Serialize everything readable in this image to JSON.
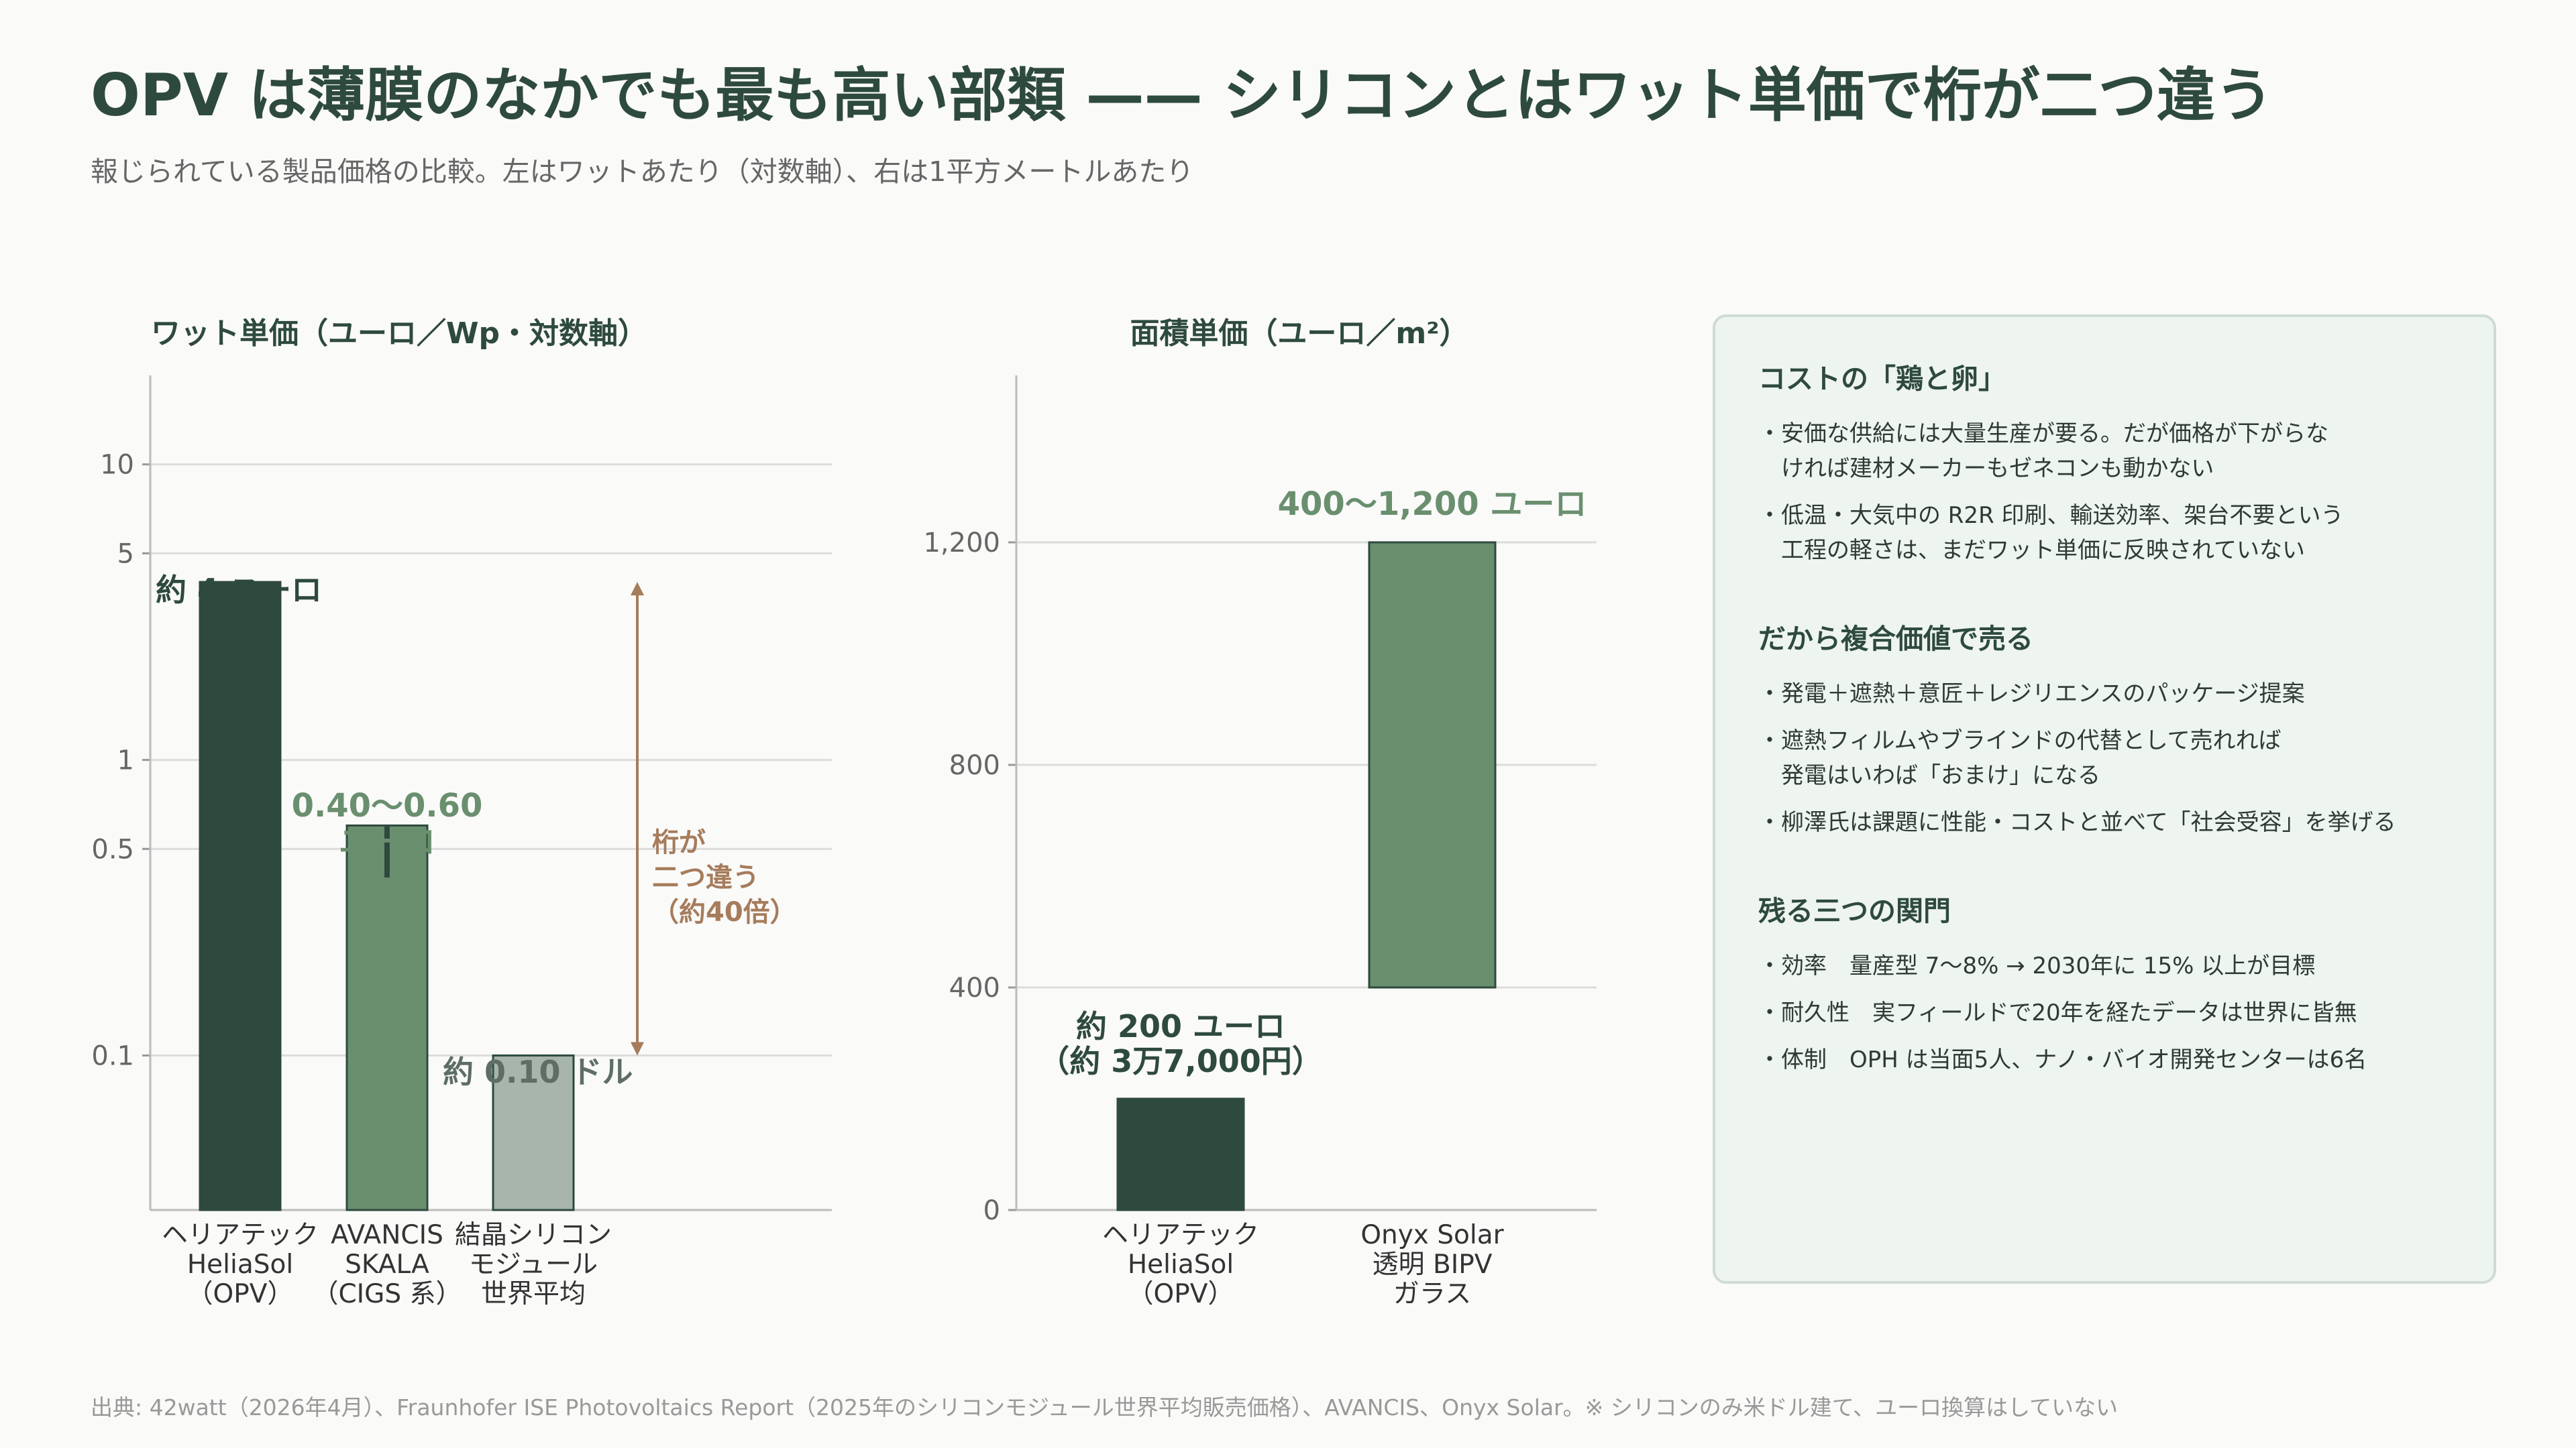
{
  "title": "OPV は薄膜のなかでも最も高い部類 —— シリコンとはワット単価で桁が二つ違う",
  "subtitle": "報じられている製品価格の比較。左はワットあたり（対数軸）、右は1平方メートルあたり",
  "colors": {
    "dark": "#2e4a3e",
    "mid": "#6a8f6f",
    "light": "#a7b5aa",
    "accent": "#a67c5b",
    "grid": "#dcdcdc"
  },
  "chart_data": [
    {
      "type": "bar",
      "title": "ワット単価（ユーロ／Wp・対数軸）",
      "scale": "log",
      "ylim": [
        0.03,
        20
      ],
      "yticks": [
        0.1,
        0.5,
        1,
        5,
        10
      ],
      "ytick_labels": [
        "0.1",
        "0.5",
        "1",
        "5",
        "10"
      ],
      "grid": true,
      "categories": [
        [
          "ヘリアテック",
          "HeliaSol",
          "（OPV）"
        ],
        [
          "AVANCIS",
          "SKALA",
          "（CIGS 系）"
        ],
        [
          "結晶シリコン",
          "モジュール",
          "世界平均"
        ]
      ],
      "values": [
        4,
        0.6,
        0.1
      ],
      "ranges": [
        null,
        [
          0.4,
          0.6
        ],
        null
      ],
      "bar_colors": [
        "#2e4a3e",
        "#6a8f6f",
        "#a7b5aa"
      ],
      "data_labels": [
        [
          "約 4 ユーロ"
        ],
        [
          "0.40〜0.60",
          "ユーロ"
        ],
        [
          "約 0.10 ドル"
        ]
      ],
      "annotation": {
        "lines": [
          "桁が",
          "二つ違う",
          "（約40倍）"
        ],
        "from": 0.1,
        "to": 4
      }
    },
    {
      "type": "bar",
      "title": "面積単価（ユーロ／m²）",
      "scale": "linear",
      "ylim": [
        0,
        1500
      ],
      "yticks": [
        0,
        400,
        800,
        1200
      ],
      "ytick_labels": [
        "0",
        "400",
        "800",
        "1,200"
      ],
      "grid": true,
      "categories": [
        [
          "ヘリアテック",
          "HeliaSol",
          "（OPV）"
        ],
        [
          "Onyx Solar",
          "透明 BIPV",
          "ガラス"
        ]
      ],
      "values": [
        200,
        1200
      ],
      "ranges": [
        null,
        [
          400,
          1200
        ]
      ],
      "bar_colors": [
        "#2e4a3e",
        "#6a8f6f"
      ],
      "data_labels": [
        [
          "約 200 ユーロ",
          "（約 3万7,000円）"
        ],
        [
          "400〜1,200 ユーロ"
        ]
      ]
    }
  ],
  "panel": {
    "sections": [
      {
        "title": "コストの「鶏と卵」",
        "items": [
          "・安価な供給には大量生産が要る。だが価格が下がらな\n　ければ建材メーカーもゼネコンも動かない",
          "・低温・大気中の R2R 印刷、輸送効率、架台不要という\n　工程の軽さは、まだワット単価に反映されていない"
        ]
      },
      {
        "title": "だから複合価値で売る",
        "items": [
          "・発電＋遮熱＋意匠＋レジリエンスのパッケージ提案",
          "・遮熱フィルムやブラインドの代替として売れれば\n　発電はいわば「おまけ」になる",
          "・柳澤氏は課題に性能・コストと並べて「社会受容」を挙げる"
        ]
      },
      {
        "title": "残る三つの関門",
        "items": [
          "・効率　量産型 7〜8% → 2030年に 15% 以上が目標",
          "・耐久性　実フィールドで20年を経たデータは世界に皆無",
          "・体制　OPH は当面5人、ナノ・バイオ開発センターは6名"
        ]
      }
    ]
  },
  "footer": "出典: 42watt（2026年4月）、Fraunhofer ISE Photovoltaics Report（2025年のシリコンモジュール世界平均販売価格）、AVANCIS、Onyx Solar。※ シリコンのみ米ドル建て、ユーロ換算はしていない"
}
